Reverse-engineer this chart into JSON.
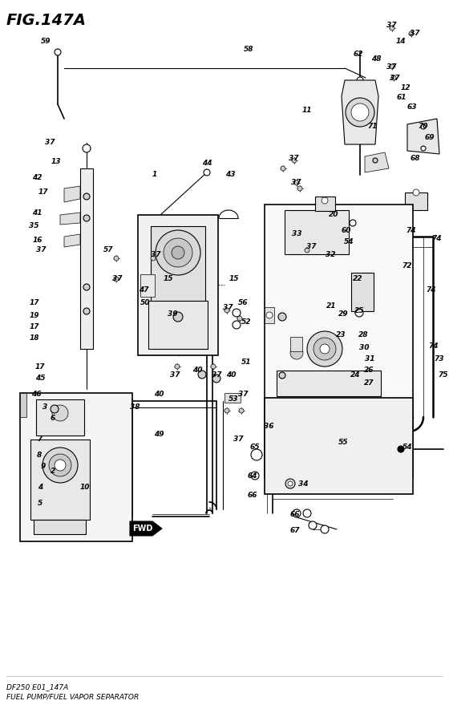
{
  "title": "FIG.147A",
  "subtitle_line1": "DF250 E01_147A",
  "subtitle_line2": "FUEL PUMP/FUEL VAPOR SEPARATOR",
  "bg_color": "#ffffff",
  "fig_width": 5.6,
  "fig_height": 8.84,
  "dpi": 100,
  "labels": [
    [
      57,
      52,
      "59"
    ],
    [
      310,
      62,
      "58"
    ],
    [
      488,
      32,
      "37"
    ],
    [
      517,
      42,
      "37"
    ],
    [
      500,
      52,
      "14"
    ],
    [
      447,
      68,
      "62"
    ],
    [
      469,
      73,
      "48"
    ],
    [
      488,
      83,
      "37"
    ],
    [
      492,
      97,
      "37"
    ],
    [
      506,
      110,
      "12"
    ],
    [
      501,
      121,
      "61"
    ],
    [
      514,
      133,
      "63"
    ],
    [
      383,
      138,
      "11"
    ],
    [
      465,
      158,
      "71"
    ],
    [
      528,
      157,
      "70"
    ],
    [
      536,
      172,
      "69"
    ],
    [
      62,
      178,
      "37"
    ],
    [
      70,
      202,
      "13"
    ],
    [
      518,
      197,
      "68"
    ],
    [
      46,
      222,
      "42"
    ],
    [
      54,
      240,
      "17"
    ],
    [
      258,
      203,
      "44"
    ],
    [
      366,
      197,
      "37"
    ],
    [
      193,
      218,
      "1"
    ],
    [
      287,
      218,
      "43"
    ],
    [
      46,
      265,
      "41"
    ],
    [
      369,
      228,
      "37"
    ],
    [
      42,
      282,
      "35"
    ],
    [
      47,
      300,
      "16"
    ],
    [
      51,
      312,
      "37"
    ],
    [
      135,
      312,
      "57"
    ],
    [
      194,
      318,
      "37"
    ],
    [
      388,
      307,
      "37"
    ],
    [
      416,
      268,
      "20"
    ],
    [
      432,
      288,
      "60"
    ],
    [
      435,
      302,
      "54"
    ],
    [
      370,
      292,
      "33"
    ],
    [
      412,
      318,
      "32"
    ],
    [
      513,
      288,
      "74"
    ],
    [
      545,
      298,
      "74"
    ],
    [
      146,
      348,
      "37"
    ],
    [
      179,
      362,
      "47"
    ],
    [
      181,
      378,
      "50"
    ],
    [
      210,
      348,
      "15"
    ],
    [
      292,
      348,
      "15"
    ],
    [
      446,
      348,
      "22"
    ],
    [
      508,
      332,
      "72"
    ],
    [
      538,
      362,
      "74"
    ],
    [
      43,
      378,
      "17"
    ],
    [
      43,
      393,
      "19"
    ],
    [
      43,
      408,
      "17"
    ],
    [
      43,
      422,
      "18"
    ],
    [
      215,
      392,
      "39"
    ],
    [
      284,
      383,
      "37"
    ],
    [
      303,
      378,
      "56"
    ],
    [
      307,
      402,
      "52"
    ],
    [
      413,
      382,
      "21"
    ],
    [
      428,
      392,
      "29"
    ],
    [
      448,
      387,
      "25"
    ],
    [
      425,
      418,
      "23"
    ],
    [
      453,
      418,
      "28"
    ],
    [
      454,
      433,
      "30"
    ],
    [
      461,
      448,
      "31"
    ],
    [
      460,
      462,
      "26"
    ],
    [
      460,
      477,
      "27"
    ],
    [
      541,
      432,
      "74"
    ],
    [
      548,
      448,
      "73"
    ],
    [
      553,
      467,
      "75"
    ],
    [
      443,
      467,
      "24"
    ],
    [
      50,
      457,
      "17"
    ],
    [
      50,
      472,
      "45"
    ],
    [
      218,
      467,
      "37"
    ],
    [
      246,
      462,
      "40"
    ],
    [
      270,
      467,
      "37"
    ],
    [
      288,
      467,
      "40"
    ],
    [
      291,
      497,
      "53"
    ],
    [
      307,
      452,
      "51"
    ],
    [
      303,
      492,
      "37"
    ],
    [
      45,
      492,
      "46"
    ],
    [
      56,
      507,
      "3"
    ],
    [
      66,
      522,
      "6"
    ],
    [
      49,
      547,
      "7"
    ],
    [
      49,
      567,
      "8"
    ],
    [
      54,
      582,
      "9"
    ],
    [
      66,
      588,
      "2"
    ],
    [
      50,
      607,
      "4"
    ],
    [
      50,
      627,
      "5"
    ],
    [
      106,
      608,
      "10"
    ],
    [
      198,
      492,
      "40"
    ],
    [
      168,
      508,
      "38"
    ],
    [
      335,
      532,
      "36"
    ],
    [
      297,
      548,
      "37"
    ],
    [
      318,
      558,
      "65"
    ],
    [
      315,
      593,
      "64"
    ],
    [
      315,
      617,
      "66"
    ],
    [
      428,
      552,
      "55"
    ],
    [
      508,
      558,
      "54"
    ],
    [
      378,
      603,
      "34"
    ],
    [
      368,
      642,
      "66"
    ],
    [
      368,
      662,
      "67"
    ],
    [
      198,
      542,
      "49"
    ]
  ]
}
